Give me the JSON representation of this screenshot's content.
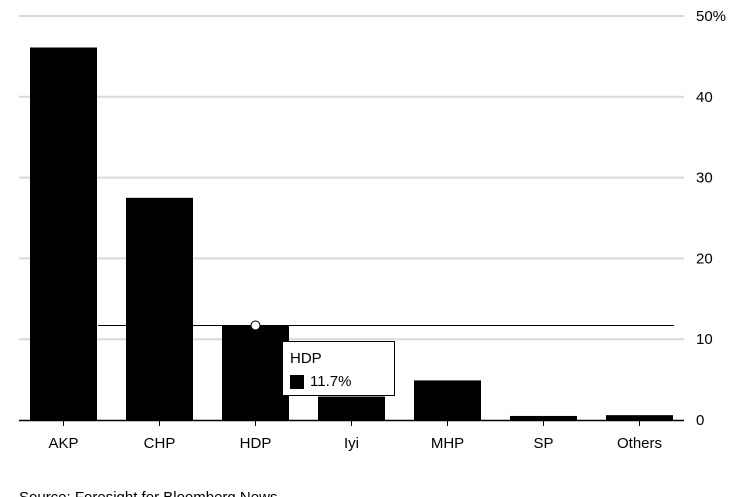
{
  "chart_data": {
    "type": "bar",
    "categories": [
      "AKP",
      "CHP",
      "HDP",
      "Iyi",
      "MHP",
      "SP",
      "Others"
    ],
    "values": [
      46.1,
      27.5,
      11.7,
      2.9,
      4.9,
      0.5,
      0.6
    ],
    "ylim": [
      0,
      50
    ],
    "yticks": [
      0,
      10,
      20,
      30,
      40,
      50
    ],
    "ytick_labels": [
      "0",
      "10",
      "20",
      "30",
      "40",
      "50%"
    ],
    "y_axis_position": "right",
    "grid": true,
    "bar_color": "#000000",
    "grid_color": "#d9d9d9",
    "crosshair_value": 11.7,
    "highlight_category": "HDP",
    "source": "Source: Foresight for Bloomberg News"
  },
  "tooltip": {
    "title": "HDP",
    "value_label": "11.7%",
    "swatch_color": "#000000"
  }
}
